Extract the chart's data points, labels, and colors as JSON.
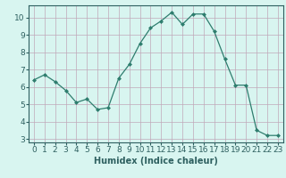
{
  "x": [
    0,
    1,
    2,
    3,
    4,
    5,
    6,
    7,
    8,
    9,
    10,
    11,
    12,
    13,
    14,
    15,
    16,
    17,
    18,
    19,
    20,
    21,
    22,
    23
  ],
  "y": [
    6.4,
    6.7,
    6.3,
    5.8,
    5.1,
    5.3,
    4.7,
    4.8,
    6.5,
    7.3,
    8.5,
    9.4,
    9.8,
    10.3,
    9.6,
    10.2,
    10.2,
    9.2,
    7.6,
    6.1,
    6.1,
    3.5,
    3.2,
    3.2
  ],
  "line_color": "#2e7d6e",
  "marker": "D",
  "marker_size": 2,
  "background_color": "#d8f5f0",
  "grid_color": "#c0a8b8",
  "axis_color": "#2e6060",
  "xlabel": "Humidex (Indice chaleur)",
  "ylim": [
    2.8,
    10.7
  ],
  "xlim": [
    -0.5,
    23.5
  ],
  "yticks": [
    3,
    4,
    5,
    6,
    7,
    8,
    9,
    10
  ],
  "xticks": [
    0,
    1,
    2,
    3,
    4,
    5,
    6,
    7,
    8,
    9,
    10,
    11,
    12,
    13,
    14,
    15,
    16,
    17,
    18,
    19,
    20,
    21,
    22,
    23
  ],
  "xlabel_fontsize": 7,
  "tick_fontsize": 6.5
}
